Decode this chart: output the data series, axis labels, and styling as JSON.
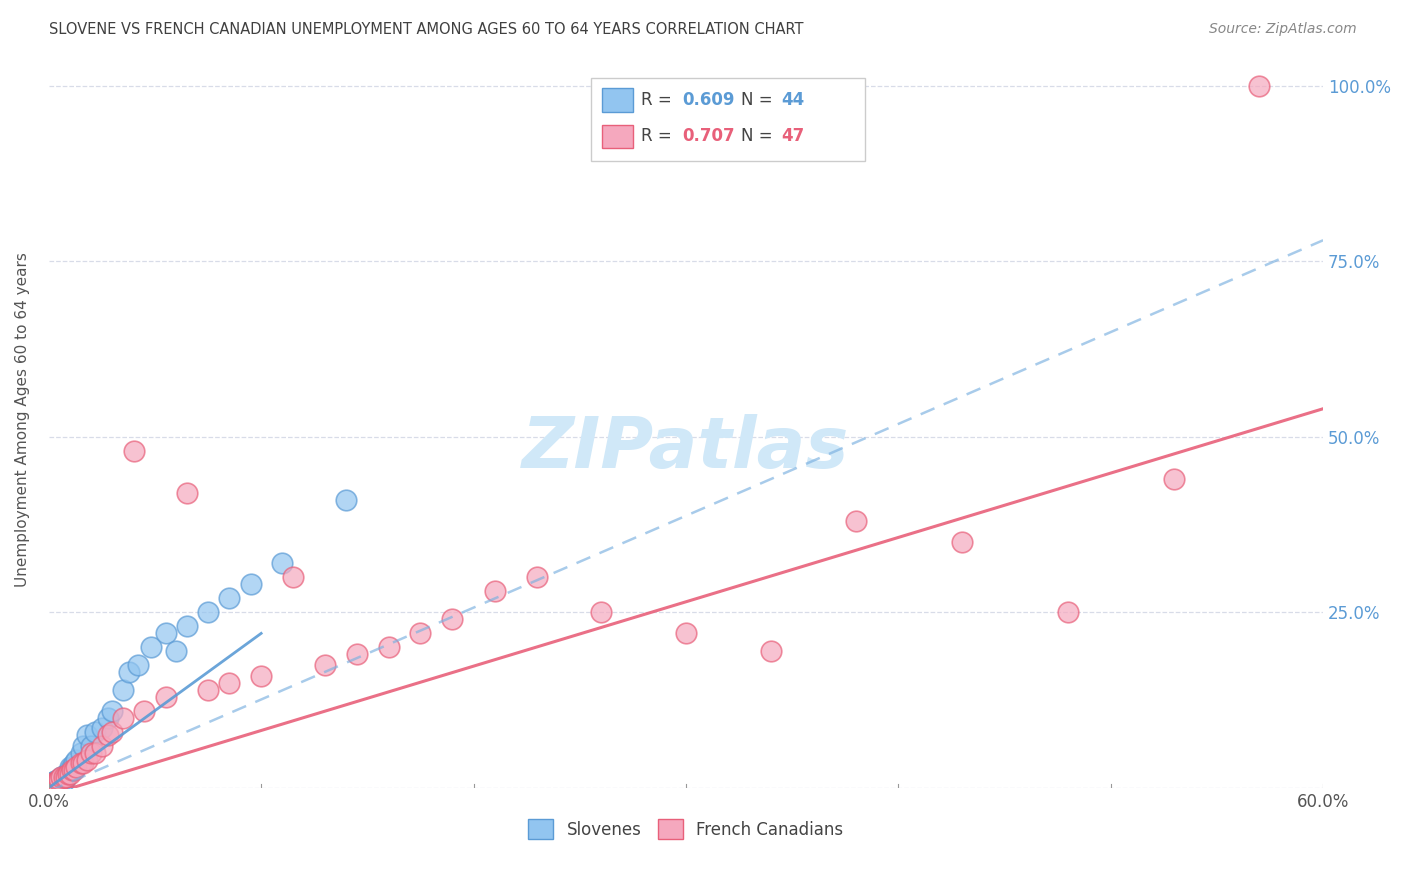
{
  "title": "SLOVENE VS FRENCH CANADIAN UNEMPLOYMENT AMONG AGES 60 TO 64 YEARS CORRELATION CHART",
  "source": "Source: ZipAtlas.com",
  "ylabel": "Unemployment Among Ages 60 to 64 years",
  "xlim": [
    0.0,
    0.6
  ],
  "ylim": [
    0.0,
    1.05
  ],
  "xtick_positions": [
    0.0,
    0.1,
    0.2,
    0.3,
    0.4,
    0.5,
    0.6
  ],
  "xticklabels": [
    "0.0%",
    "",
    "",
    "",
    "",
    "",
    "60.0%"
  ],
  "ytick_positions": [
    0.0,
    0.25,
    0.5,
    0.75,
    1.0
  ],
  "yticklabels_right": [
    "",
    "25.0%",
    "50.0%",
    "75.0%",
    "100.0%"
  ],
  "slovene_color": "#92c5f0",
  "french_color": "#f5a8be",
  "slovene_edge_color": "#5b9bd5",
  "french_edge_color": "#e8607a",
  "slovene_line_color": "#7ab0e0",
  "french_line_color": "#e8607a",
  "grid_color": "#d8dce8",
  "title_color": "#404040",
  "right_axis_color": "#5b9bd5",
  "legend_blue": "#5b9bd5",
  "legend_pink": "#e8607a",
  "watermark_color": "#d0e8f8",
  "slovene_x": [
    0.001,
    0.002,
    0.002,
    0.003,
    0.003,
    0.003,
    0.004,
    0.004,
    0.004,
    0.005,
    0.005,
    0.005,
    0.006,
    0.006,
    0.007,
    0.007,
    0.008,
    0.008,
    0.009,
    0.01,
    0.01,
    0.011,
    0.012,
    0.013,
    0.015,
    0.016,
    0.018,
    0.02,
    0.022,
    0.025,
    0.028,
    0.03,
    0.035,
    0.038,
    0.042,
    0.048,
    0.055,
    0.06,
    0.065,
    0.075,
    0.085,
    0.095,
    0.11,
    0.14
  ],
  "slovene_y": [
    0.005,
    0.005,
    0.008,
    0.005,
    0.008,
    0.01,
    0.005,
    0.008,
    0.01,
    0.005,
    0.008,
    0.012,
    0.01,
    0.015,
    0.01,
    0.015,
    0.015,
    0.02,
    0.02,
    0.025,
    0.03,
    0.03,
    0.035,
    0.04,
    0.05,
    0.06,
    0.075,
    0.06,
    0.08,
    0.085,
    0.1,
    0.11,
    0.14,
    0.165,
    0.175,
    0.2,
    0.22,
    0.195,
    0.23,
    0.25,
    0.27,
    0.29,
    0.32,
    0.41
  ],
  "french_x": [
    0.001,
    0.002,
    0.003,
    0.003,
    0.004,
    0.005,
    0.005,
    0.006,
    0.007,
    0.008,
    0.009,
    0.01,
    0.011,
    0.012,
    0.013,
    0.015,
    0.016,
    0.018,
    0.02,
    0.022,
    0.025,
    0.028,
    0.03,
    0.035,
    0.04,
    0.045,
    0.055,
    0.065,
    0.075,
    0.085,
    0.1,
    0.115,
    0.13,
    0.145,
    0.16,
    0.175,
    0.19,
    0.21,
    0.23,
    0.26,
    0.3,
    0.34,
    0.38,
    0.43,
    0.48,
    0.53,
    0.57
  ],
  "french_y": [
    0.005,
    0.005,
    0.005,
    0.008,
    0.008,
    0.01,
    0.012,
    0.015,
    0.015,
    0.015,
    0.02,
    0.02,
    0.025,
    0.025,
    0.03,
    0.035,
    0.035,
    0.04,
    0.05,
    0.05,
    0.06,
    0.075,
    0.08,
    0.1,
    0.48,
    0.11,
    0.13,
    0.42,
    0.14,
    0.15,
    0.16,
    0.3,
    0.175,
    0.19,
    0.2,
    0.22,
    0.24,
    0.28,
    0.3,
    0.25,
    0.22,
    0.195,
    0.38,
    0.35,
    0.25,
    0.44,
    1.0
  ],
  "slovene_trend_x0": 0.0,
  "slovene_trend_y0": -0.005,
  "slovene_trend_x1": 0.6,
  "slovene_trend_y1": 0.78,
  "french_trend_x0": 0.0,
  "french_trend_y0": -0.01,
  "french_trend_x1": 0.6,
  "french_trend_y1": 0.54
}
